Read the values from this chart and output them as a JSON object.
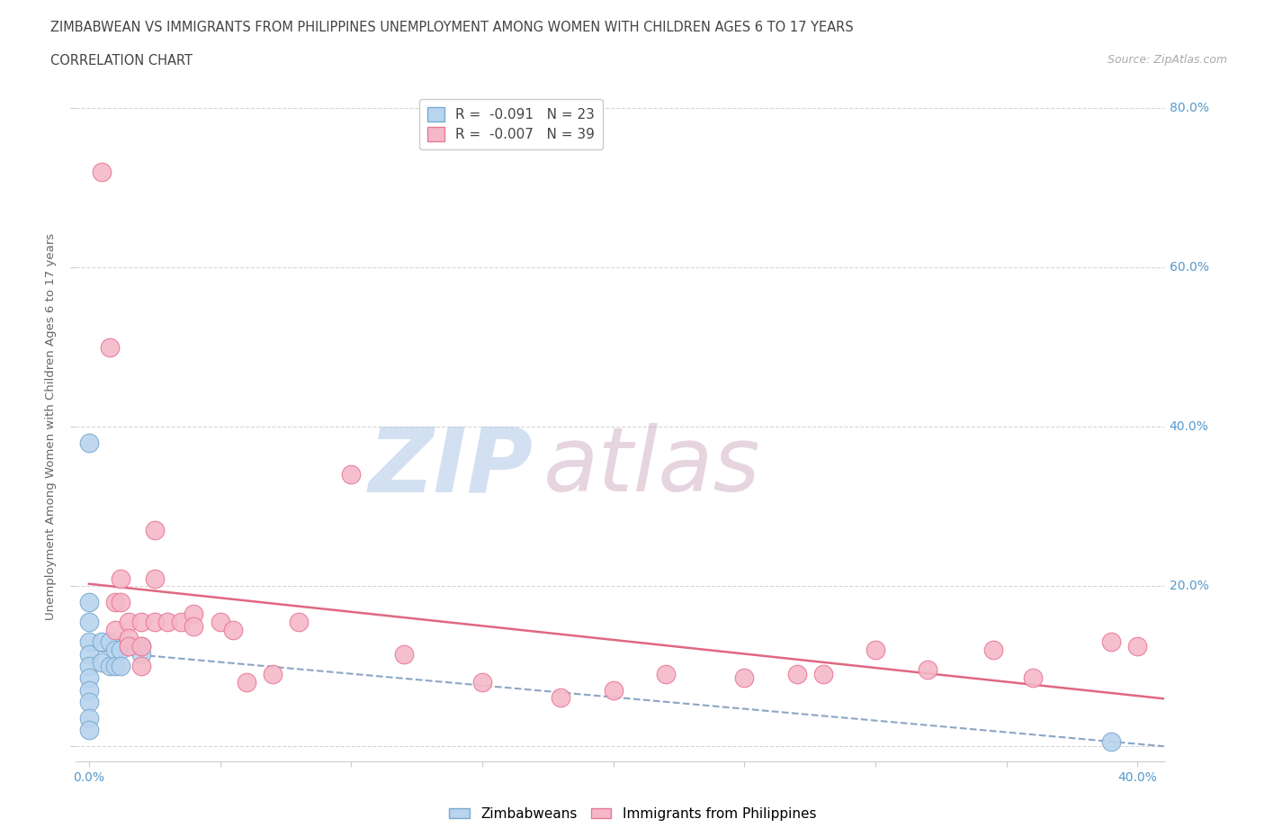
{
  "title_line1": "ZIMBABWEAN VS IMMIGRANTS FROM PHILIPPINES UNEMPLOYMENT AMONG WOMEN WITH CHILDREN AGES 6 TO 17 YEARS",
  "title_line2": "CORRELATION CHART",
  "source": "Source: ZipAtlas.com",
  "ylabel": "Unemployment Among Women with Children Ages 6 to 17 years",
  "xlim": [
    -0.005,
    0.41
  ],
  "ylim": [
    -0.02,
    0.82
  ],
  "zim_r": -0.091,
  "zim_n": 23,
  "phil_r": -0.007,
  "phil_n": 39,
  "zim_color": "#b8d4ee",
  "phil_color": "#f5b8c8",
  "zim_edge_color": "#7aaad0",
  "phil_edge_color": "#e87898",
  "zim_line_color": "#7090b8",
  "phil_line_color": "#e06880",
  "background_color": "#ffffff",
  "watermark_zip": "ZIP",
  "watermark_atlas": "atlas",
  "grid_color": "#cccccc",
  "zimbabwean_x": [
    0.0,
    0.0,
    0.0,
    0.0,
    0.0,
    0.0,
    0.0,
    0.0,
    0.0,
    0.0,
    0.0,
    0.005,
    0.005,
    0.008,
    0.008,
    0.01,
    0.01,
    0.012,
    0.012,
    0.015,
    0.02,
    0.02,
    0.39
  ],
  "zimbabwean_y": [
    0.38,
    0.18,
    0.155,
    0.13,
    0.115,
    0.1,
    0.085,
    0.07,
    0.055,
    0.035,
    0.02,
    0.13,
    0.105,
    0.13,
    0.1,
    0.12,
    0.1,
    0.12,
    0.1,
    0.125,
    0.125,
    0.115,
    0.005
  ],
  "philippines_x": [
    0.005,
    0.008,
    0.01,
    0.01,
    0.012,
    0.012,
    0.015,
    0.015,
    0.015,
    0.02,
    0.02,
    0.02,
    0.025,
    0.025,
    0.025,
    0.03,
    0.035,
    0.04,
    0.04,
    0.05,
    0.055,
    0.06,
    0.07,
    0.08,
    0.1,
    0.12,
    0.15,
    0.18,
    0.2,
    0.22,
    0.25,
    0.27,
    0.28,
    0.3,
    0.32,
    0.345,
    0.36,
    0.39,
    0.4
  ],
  "philippines_y": [
    0.72,
    0.5,
    0.18,
    0.145,
    0.21,
    0.18,
    0.155,
    0.135,
    0.125,
    0.155,
    0.125,
    0.1,
    0.27,
    0.21,
    0.155,
    0.155,
    0.155,
    0.165,
    0.15,
    0.155,
    0.145,
    0.08,
    0.09,
    0.155,
    0.34,
    0.115,
    0.08,
    0.06,
    0.07,
    0.09,
    0.085,
    0.09,
    0.09,
    0.12,
    0.095,
    0.12,
    0.085,
    0.13,
    0.125
  ]
}
